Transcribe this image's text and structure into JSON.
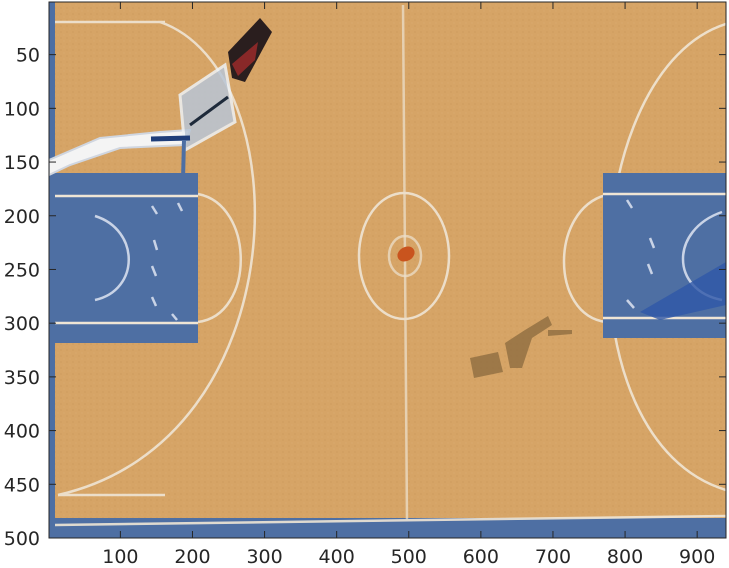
{
  "image": {
    "subject": "basketball-court-overhead-view",
    "colors": {
      "floor": "#d6a466",
      "floor_dark": "#c48d4f",
      "paint_blue": "#4e6fa3",
      "line_white": "#efe5d5",
      "axes": "#262626",
      "ball": "#c9541e"
    }
  },
  "axes": {
    "x_range": [
      1,
      940
    ],
    "y_range": [
      1,
      500
    ],
    "x_ticks": [
      {
        "value": 100,
        "label": "100"
      },
      {
        "value": 200,
        "label": "200"
      },
      {
        "value": 300,
        "label": "300"
      },
      {
        "value": 400,
        "label": "400"
      },
      {
        "value": 500,
        "label": "500"
      },
      {
        "value": 600,
        "label": "600"
      },
      {
        "value": 700,
        "label": "700"
      },
      {
        "value": 800,
        "label": "800"
      },
      {
        "value": 900,
        "label": "900"
      }
    ],
    "y_ticks": [
      {
        "value": 50,
        "label": "50"
      },
      {
        "value": 100,
        "label": "100"
      },
      {
        "value": 150,
        "label": "150"
      },
      {
        "value": 200,
        "label": "200"
      },
      {
        "value": 250,
        "label": "250"
      },
      {
        "value": 300,
        "label": "300"
      },
      {
        "value": 350,
        "label": "350"
      },
      {
        "value": 400,
        "label": "400"
      },
      {
        "value": 450,
        "label": "450"
      },
      {
        "value": 500,
        "label": "500"
      }
    ]
  }
}
